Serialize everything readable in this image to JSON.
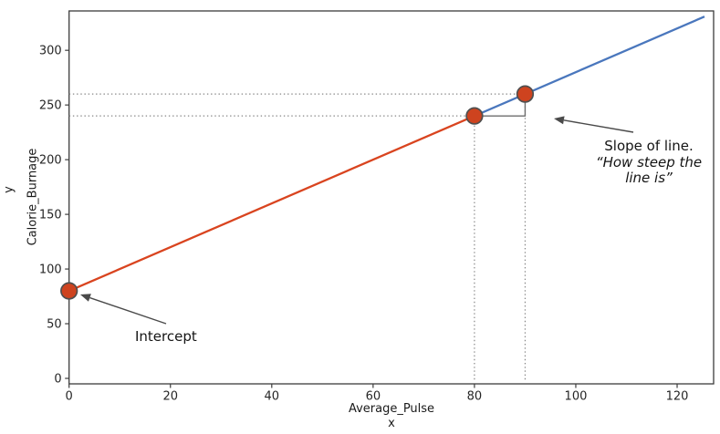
{
  "chart_data": {
    "type": "line",
    "title": "",
    "xlabel": "Average_Pulse",
    "xlabel_secondary": "x",
    "ylabel": "Calorie_Burnage",
    "ylabel_secondary": "y",
    "x_ticks": [
      0,
      20,
      40,
      60,
      80,
      100,
      120
    ],
    "y_ticks": [
      0,
      50,
      100,
      150,
      200,
      250,
      300
    ],
    "xlim": [
      0,
      127.2
    ],
    "ylim": [
      -5,
      336
    ],
    "grid": false,
    "legend": false,
    "series": [
      {
        "name": "line-segment-red",
        "color": "#d9441f",
        "points": [
          [
            0,
            80
          ],
          [
            80,
            240
          ]
        ]
      },
      {
        "name": "line-segment-blue",
        "color": "#4a77bd",
        "points": [
          [
            80,
            240
          ],
          [
            125.4,
            330.8
          ]
        ]
      }
    ],
    "markers": {
      "fill": "#ce431f",
      "edge_color": "#4f4f4f",
      "radius": 8.8,
      "points": [
        [
          0,
          80
        ],
        [
          80,
          240
        ],
        [
          90,
          260
        ]
      ]
    },
    "guides": {
      "color": "#858585",
      "horizontal_dotted": [
        {
          "y": 240,
          "x_from": 0,
          "x_to": 80
        },
        {
          "y": 260,
          "x_from": 0,
          "x_to": 90
        }
      ],
      "vertical_dotted": [
        {
          "x": 80,
          "y_from": -1,
          "y_to": 240
        },
        {
          "x": 90,
          "y_from": -1,
          "y_to": 260
        }
      ],
      "slope_step": {
        "color": "#6e6e6e",
        "path": [
          [
            80,
            240
          ],
          [
            90,
            240
          ],
          [
            90,
            260
          ]
        ]
      }
    },
    "annotations": {
      "intercept": {
        "text": "Intercept",
        "points_to": [
          0,
          80
        ]
      },
      "slope": {
        "line1": "Slope of line.",
        "line2": "“How steep the",
        "line3": "line is”",
        "points_to": [
          90,
          260
        ]
      }
    },
    "colors": {
      "spine": "#3c3c3c",
      "arrow": "#4a4a4a",
      "text": "#141414"
    }
  }
}
